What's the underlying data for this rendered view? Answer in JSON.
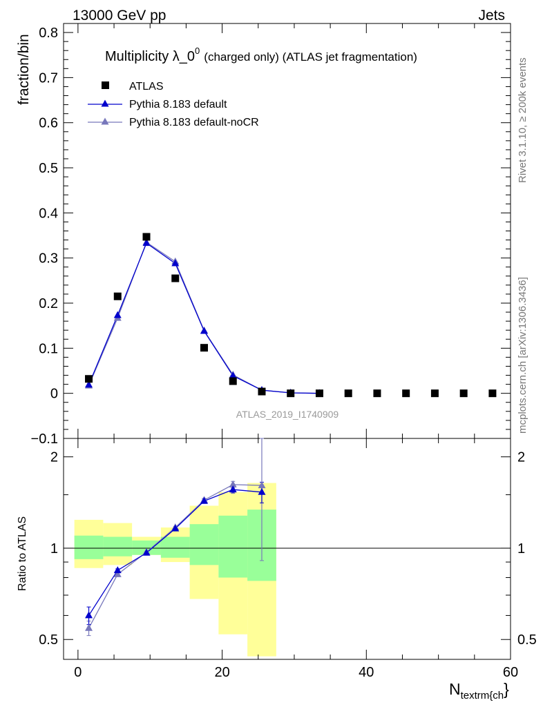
{
  "header": {
    "left": "13000 GeV pp",
    "right": "Jets"
  },
  "side_text": {
    "rivet": "Rivet 3.1.10, ≥ 200k events",
    "mcplots": "mcplots.cern.ch [arXiv:1306.3436]"
  },
  "chart_data": [
    {
      "type": "scatter",
      "panel": "main",
      "title_main": "Multiplicity λ_0",
      "title_sup": "0",
      "title_rest": "(charged only) (ATLAS jet fragmentation)",
      "ylabel": "fraction/bin",
      "analysis_label": "ATLAS_2019_I1740909",
      "xlim": [
        -2,
        60
      ],
      "ylim": [
        -0.1,
        0.82
      ],
      "yticks": [
        -0.1,
        0,
        0.1,
        0.2,
        0.3,
        0.4,
        0.5,
        0.6,
        0.7,
        0.8
      ],
      "ytick_labels": [
        "−0.1",
        "0",
        "0.1",
        "0.2",
        "0.3",
        "0.4",
        "0.5",
        "0.6",
        "0.7",
        "0.8"
      ],
      "series": [
        {
          "name": "ATLAS",
          "color": "#000000",
          "marker": "square",
          "x": [
            1.5,
            5.5,
            9.5,
            13.5,
            17.5,
            21.5,
            25.5,
            29.5,
            33.5,
            37.5,
            41.5,
            45.5,
            49.5,
            53.5,
            57.5
          ],
          "y": [
            0.032,
            0.215,
            0.347,
            0.255,
            0.101,
            0.027,
            0.004,
            0.0,
            0.0,
            0.0,
            0.0,
            0.0,
            0.0,
            0.0,
            0.0
          ]
        },
        {
          "name": "Pythia 8.183 default",
          "color": "#0000cc",
          "marker": "triangle",
          "x": [
            1.5,
            5.5,
            9.5,
            13.5,
            17.5,
            21.5,
            25.5,
            29.5,
            33.5
          ],
          "y": [
            0.019,
            0.173,
            0.333,
            0.288,
            0.138,
            0.039,
            0.007,
            0.001,
            0.0
          ]
        },
        {
          "name": "Pythia 8.183 default-noCR",
          "color": "#7777bb",
          "marker": "triangle",
          "x": [
            1.5,
            5.5,
            9.5,
            13.5,
            17.5,
            21.5,
            25.5,
            29.5,
            33.5
          ],
          "y": [
            0.017,
            0.167,
            0.335,
            0.292,
            0.139,
            0.041,
            0.007,
            0.001,
            0.0
          ]
        }
      ]
    },
    {
      "type": "line",
      "panel": "ratio",
      "ylabel": "Ratio to ATLAS",
      "xlabel_main": "N",
      "xlabel_sub": "textrm{ch",
      "xlabel_tail": "}",
      "xlim": [
        -2,
        60
      ],
      "ylim": [
        0.43,
        2.3
      ],
      "yscale": "log",
      "yticks": [
        0.5,
        1,
        2
      ],
      "ytick_labels": [
        "0.5",
        "1",
        "2"
      ],
      "xticks": [
        0,
        20,
        40,
        60
      ],
      "xtick_labels": [
        "0",
        "20",
        "40",
        "60"
      ],
      "bands": {
        "edges": [
          -0.5,
          3.5,
          7.5,
          11.5,
          15.5,
          19.5,
          23.5,
          27.5
        ],
        "green_lo": [
          0.92,
          0.94,
          0.95,
          0.93,
          0.88,
          0.8,
          0.78
        ],
        "green_hi": [
          1.1,
          1.09,
          1.06,
          1.09,
          1.2,
          1.28,
          1.34
        ],
        "yellow_lo": [
          0.86,
          0.88,
          0.95,
          0.9,
          0.68,
          0.52,
          0.44
        ],
        "yellow_hi": [
          1.24,
          1.21,
          1.09,
          1.17,
          1.38,
          1.53,
          1.64
        ],
        "green_color": "#99ff99",
        "yellow_color": "#ffff99"
      },
      "series": [
        {
          "name": "Pythia 8.183 default",
          "color": "#0000cc",
          "x": [
            1.5,
            5.5,
            9.5,
            13.5,
            17.5,
            21.5,
            25.5
          ],
          "y": [
            0.6,
            0.845,
            0.965,
            1.16,
            1.43,
            1.56,
            1.53
          ],
          "err": [
            0.04,
            0.01,
            0.005,
            0.01,
            0.02,
            0.04,
            0.12
          ]
        },
        {
          "name": "Pythia 8.183 default-noCR",
          "color": "#7777bb",
          "x": [
            1.5,
            5.5,
            9.5,
            13.5,
            17.5,
            21.5,
            25.5
          ],
          "y": [
            0.545,
            0.82,
            0.97,
            1.17,
            1.44,
            1.62,
            1.61
          ],
          "err": [
            0.03,
            0.01,
            0.005,
            0.01,
            0.02,
            0.04,
            0.7
          ]
        }
      ]
    }
  ]
}
